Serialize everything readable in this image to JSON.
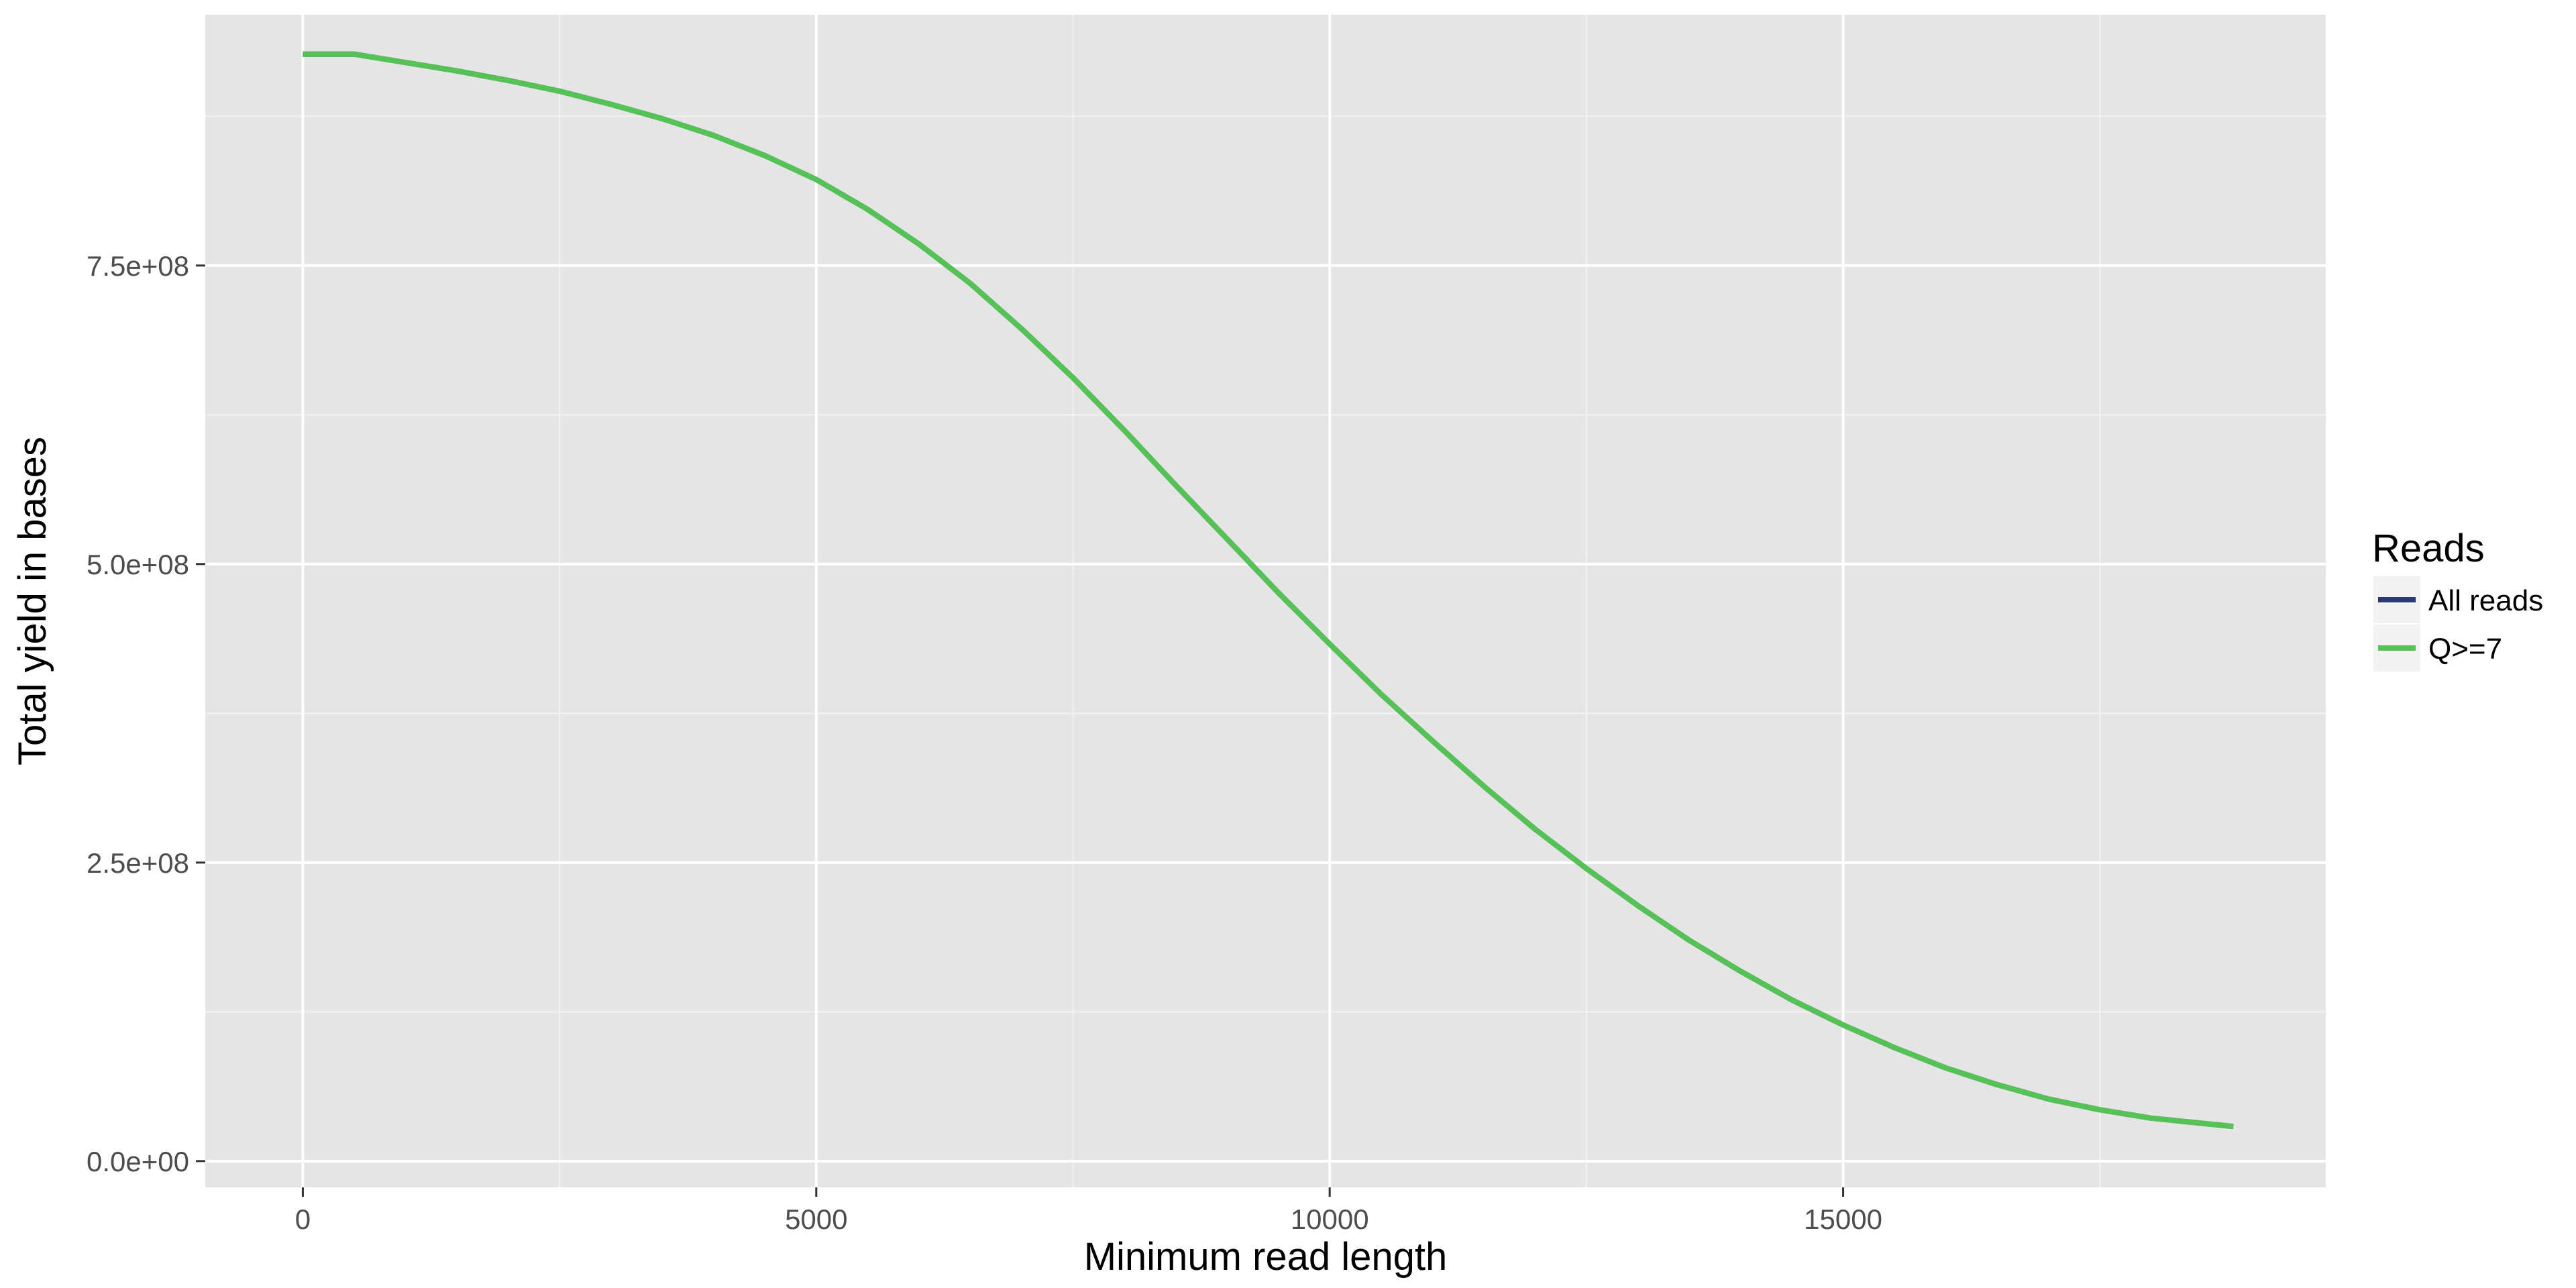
{
  "chart_data": {
    "type": "line",
    "xlabel": "Minimum read length",
    "ylabel": "Total yield in bases",
    "xlim": [
      -950,
      19700
    ],
    "ylim": [
      -22000000,
      960000000
    ],
    "x_ticks": [
      0,
      5000,
      10000,
      15000
    ],
    "x_tick_labels": [
      "0",
      "5000",
      "10000",
      "15000"
    ],
    "y_ticks": [
      0,
      250000000,
      500000000,
      750000000
    ],
    "y_tick_labels": [
      "0.0e+00",
      "2.5e+08",
      "5.0e+08",
      "7.5e+08"
    ],
    "grid": true,
    "legend": {
      "title": "Reads",
      "placement": "right",
      "entries": [
        {
          "name": "All reads",
          "color": "#2b3b73"
        },
        {
          "name": "Q>=7",
          "color": "#55c255"
        }
      ]
    },
    "series": [
      {
        "name": "All reads",
        "color": "#2b3b73",
        "x": [
          0,
          500,
          1000,
          1500,
          2000,
          2500,
          3000,
          3500,
          4000,
          4500,
          5000,
          5500,
          6000,
          6500,
          7000,
          7500,
          8000,
          8500,
          9000,
          9500,
          10000,
          10500,
          11000,
          11500,
          12000,
          12500,
          13000,
          13500,
          14000,
          14500,
          15000,
          15500,
          16000,
          16500,
          17000,
          17500,
          18000,
          18800
        ],
        "y": [
          927000000,
          927000000,
          920000000,
          913000000,
          905000000,
          896000000,
          885000000,
          873000000,
          859000000,
          842000000,
          822000000,
          797000000,
          768000000,
          735000000,
          697000000,
          656000000,
          612000000,
          566000000,
          521000000,
          476000000,
          433000000,
          391000000,
          352000000,
          314000000,
          278000000,
          245000000,
          214000000,
          185000000,
          159000000,
          135000000,
          114000000,
          95000000,
          78000000,
          64000000,
          52000000,
          43000000,
          36000000,
          29000000
        ]
      },
      {
        "name": "Q>=7",
        "color": "#55c255",
        "x": [
          0,
          500,
          1000,
          1500,
          2000,
          2500,
          3000,
          3500,
          4000,
          4500,
          5000,
          5500,
          6000,
          6500,
          7000,
          7500,
          8000,
          8500,
          9000,
          9500,
          10000,
          10500,
          11000,
          11500,
          12000,
          12500,
          13000,
          13500,
          14000,
          14500,
          15000,
          15500,
          16000,
          16500,
          17000,
          17500,
          18000,
          18800
        ],
        "y": [
          927000000,
          927000000,
          920000000,
          913000000,
          905000000,
          896000000,
          885000000,
          873000000,
          859000000,
          842000000,
          822000000,
          797000000,
          768000000,
          735000000,
          697000000,
          656000000,
          612000000,
          566000000,
          521000000,
          476000000,
          433000000,
          391000000,
          352000000,
          314000000,
          278000000,
          245000000,
          214000000,
          185000000,
          159000000,
          135000000,
          114000000,
          95000000,
          78000000,
          64000000,
          52000000,
          43000000,
          36000000,
          29000000
        ]
      }
    ]
  },
  "colors": {
    "panel_background": "#e5e5e5",
    "grid_major": "#ffffff",
    "grid_minor": "#f2f2f2",
    "tick_text": "#4d4d4d"
  }
}
